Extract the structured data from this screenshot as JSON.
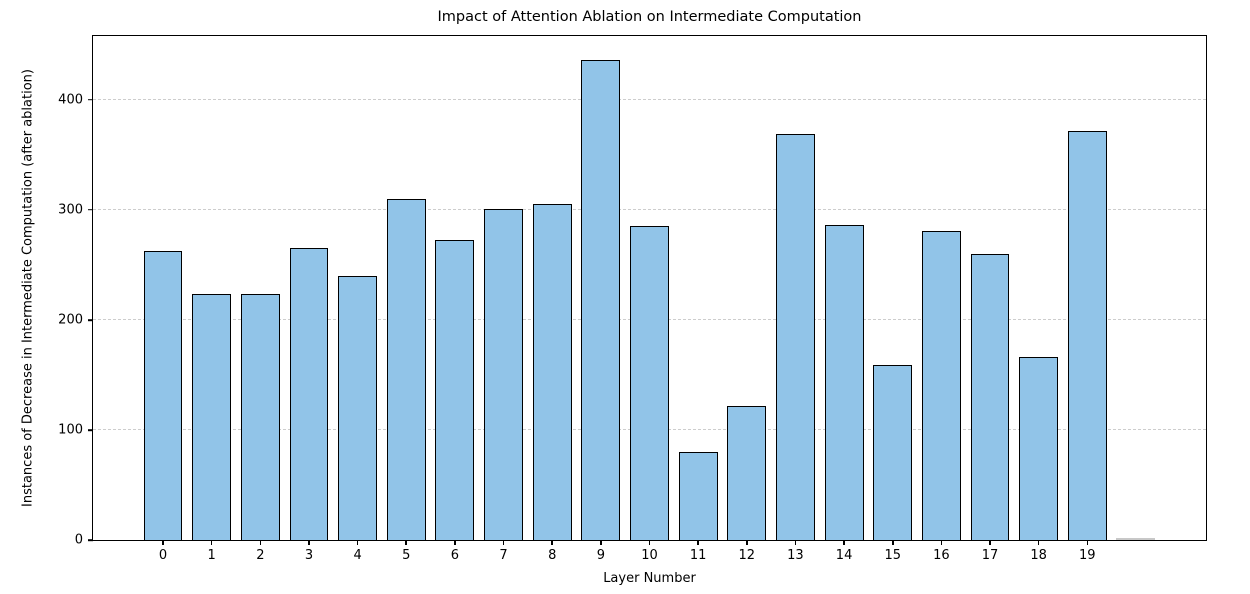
{
  "chart_data": {
    "type": "bar",
    "title": "Impact of Attention Ablation on Intermediate Computation",
    "xlabel": "Layer Number",
    "ylabel": "Instances of Decrease in Intermediate Computation (after ablation)",
    "x": [
      0,
      1,
      2,
      3,
      4,
      5,
      6,
      7,
      8,
      9,
      10,
      11,
      12,
      13,
      14,
      15,
      16,
      17,
      18,
      19,
      20
    ],
    "tick_labels": [
      "0",
      "1",
      "2",
      "3",
      "4",
      "5",
      "6",
      "7",
      "8",
      "9",
      "10",
      "11",
      "12",
      "13",
      "14",
      "15",
      "16",
      "17",
      "18",
      "19",
      ""
    ],
    "values": [
      263,
      224,
      224,
      265,
      240,
      310,
      273,
      301,
      305,
      436,
      285,
      80,
      122,
      369,
      286,
      159,
      281,
      260,
      166,
      372,
      1
    ],
    "bar_color": "#91c4e8",
    "bar_edge_color": "#000000",
    "bar_color_overrides": {
      "20": "#c8c8c8"
    },
    "bar_width_ratio": 0.8,
    "xlim": [
      -1.44,
      21.44
    ],
    "ylim": [
      0,
      458
    ],
    "yticks": [
      0,
      100,
      200,
      300,
      400
    ],
    "grid": "horizontal-dashed",
    "grid_color": "#cdcdcd",
    "legend": "none"
  }
}
